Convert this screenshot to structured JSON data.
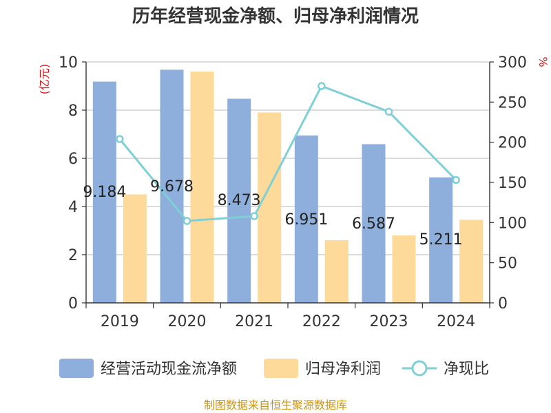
{
  "chart_data": {
    "type": "bar",
    "title": "历年经营现金净额、归母净利润情况",
    "categories": [
      "2019",
      "2020",
      "2021",
      "2022",
      "2023",
      "2024"
    ],
    "series": [
      {
        "name": "经营活动现金流净额",
        "type": "bar",
        "axis": "left",
        "color": "#8eaedb",
        "values": [
          9.184,
          9.678,
          8.473,
          6.951,
          6.587,
          5.211
        ]
      },
      {
        "name": "归母净利润",
        "type": "bar",
        "axis": "left",
        "color": "#fdd99a",
        "values": [
          4.5,
          9.6,
          7.9,
          2.6,
          2.8,
          3.45
        ]
      },
      {
        "name": "净现比",
        "type": "line",
        "axis": "right",
        "color": "#7fcfd6",
        "values": [
          204,
          102,
          108,
          270,
          238,
          153
        ]
      }
    ],
    "data_labels": [
      "9.184",
      "9.678",
      "8.473",
      "6.951",
      "6.587",
      "5.211"
    ],
    "yleft": {
      "label": "(亿元)",
      "ticks": [
        "0",
        "2",
        "4",
        "6",
        "8",
        "10"
      ],
      "ylim": [
        0,
        10
      ]
    },
    "yright": {
      "label": "%",
      "ticks": [
        "0",
        "50",
        "100",
        "150",
        "200",
        "250",
        "300"
      ],
      "ylim": [
        0,
        300
      ]
    },
    "grid": true,
    "legend_position": "bottom",
    "source": "制图数据来自恒生聚源数据库"
  }
}
